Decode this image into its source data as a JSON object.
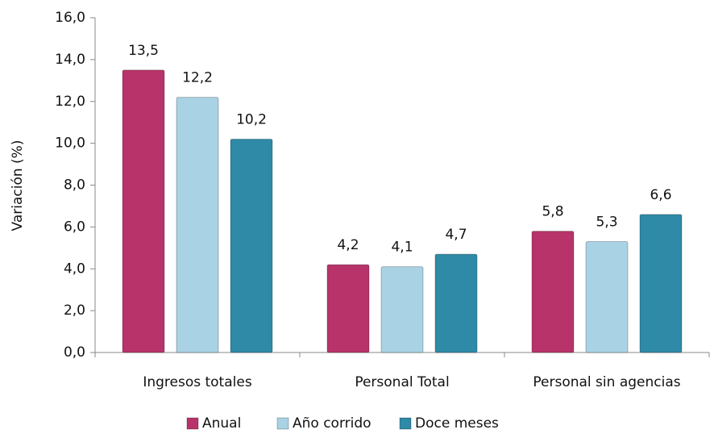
{
  "chart_data": {
    "type": "bar",
    "y_label": "Variación (%)",
    "categories": [
      "Ingresos totales",
      "Personal Total",
      "Personal sin agencias"
    ],
    "series": [
      {
        "name": "Anual",
        "color": "#b8336a",
        "values": [
          13.5,
          4.2,
          5.8
        ],
        "value_labels": [
          "13,5",
          "4,2",
          "5,8"
        ]
      },
      {
        "name": "Año corrido",
        "color": "#a9d3e4",
        "values": [
          12.2,
          4.1,
          5.3
        ],
        "value_labels": [
          "12,2",
          "4,1",
          "5,3"
        ]
      },
      {
        "name": "Doce meses",
        "color": "#2e8aa6",
        "values": [
          10.2,
          4.7,
          6.6
        ],
        "value_labels": [
          "10,2",
          "4,7",
          "6,6"
        ]
      }
    ],
    "ylim": [
      0,
      16
    ],
    "yticks": [
      {
        "value": 0,
        "label": "0,0"
      },
      {
        "value": 2,
        "label": "2,0"
      },
      {
        "value": 4,
        "label": "4,0"
      },
      {
        "value": 6,
        "label": "6,0"
      },
      {
        "value": 8,
        "label": "8,0"
      },
      {
        "value": 10,
        "label": "10,0"
      },
      {
        "value": 12,
        "label": "12,0"
      },
      {
        "value": 14,
        "label": "14,0"
      },
      {
        "value": 16,
        "label": "16,0"
      }
    ],
    "legend": "bottom"
  }
}
